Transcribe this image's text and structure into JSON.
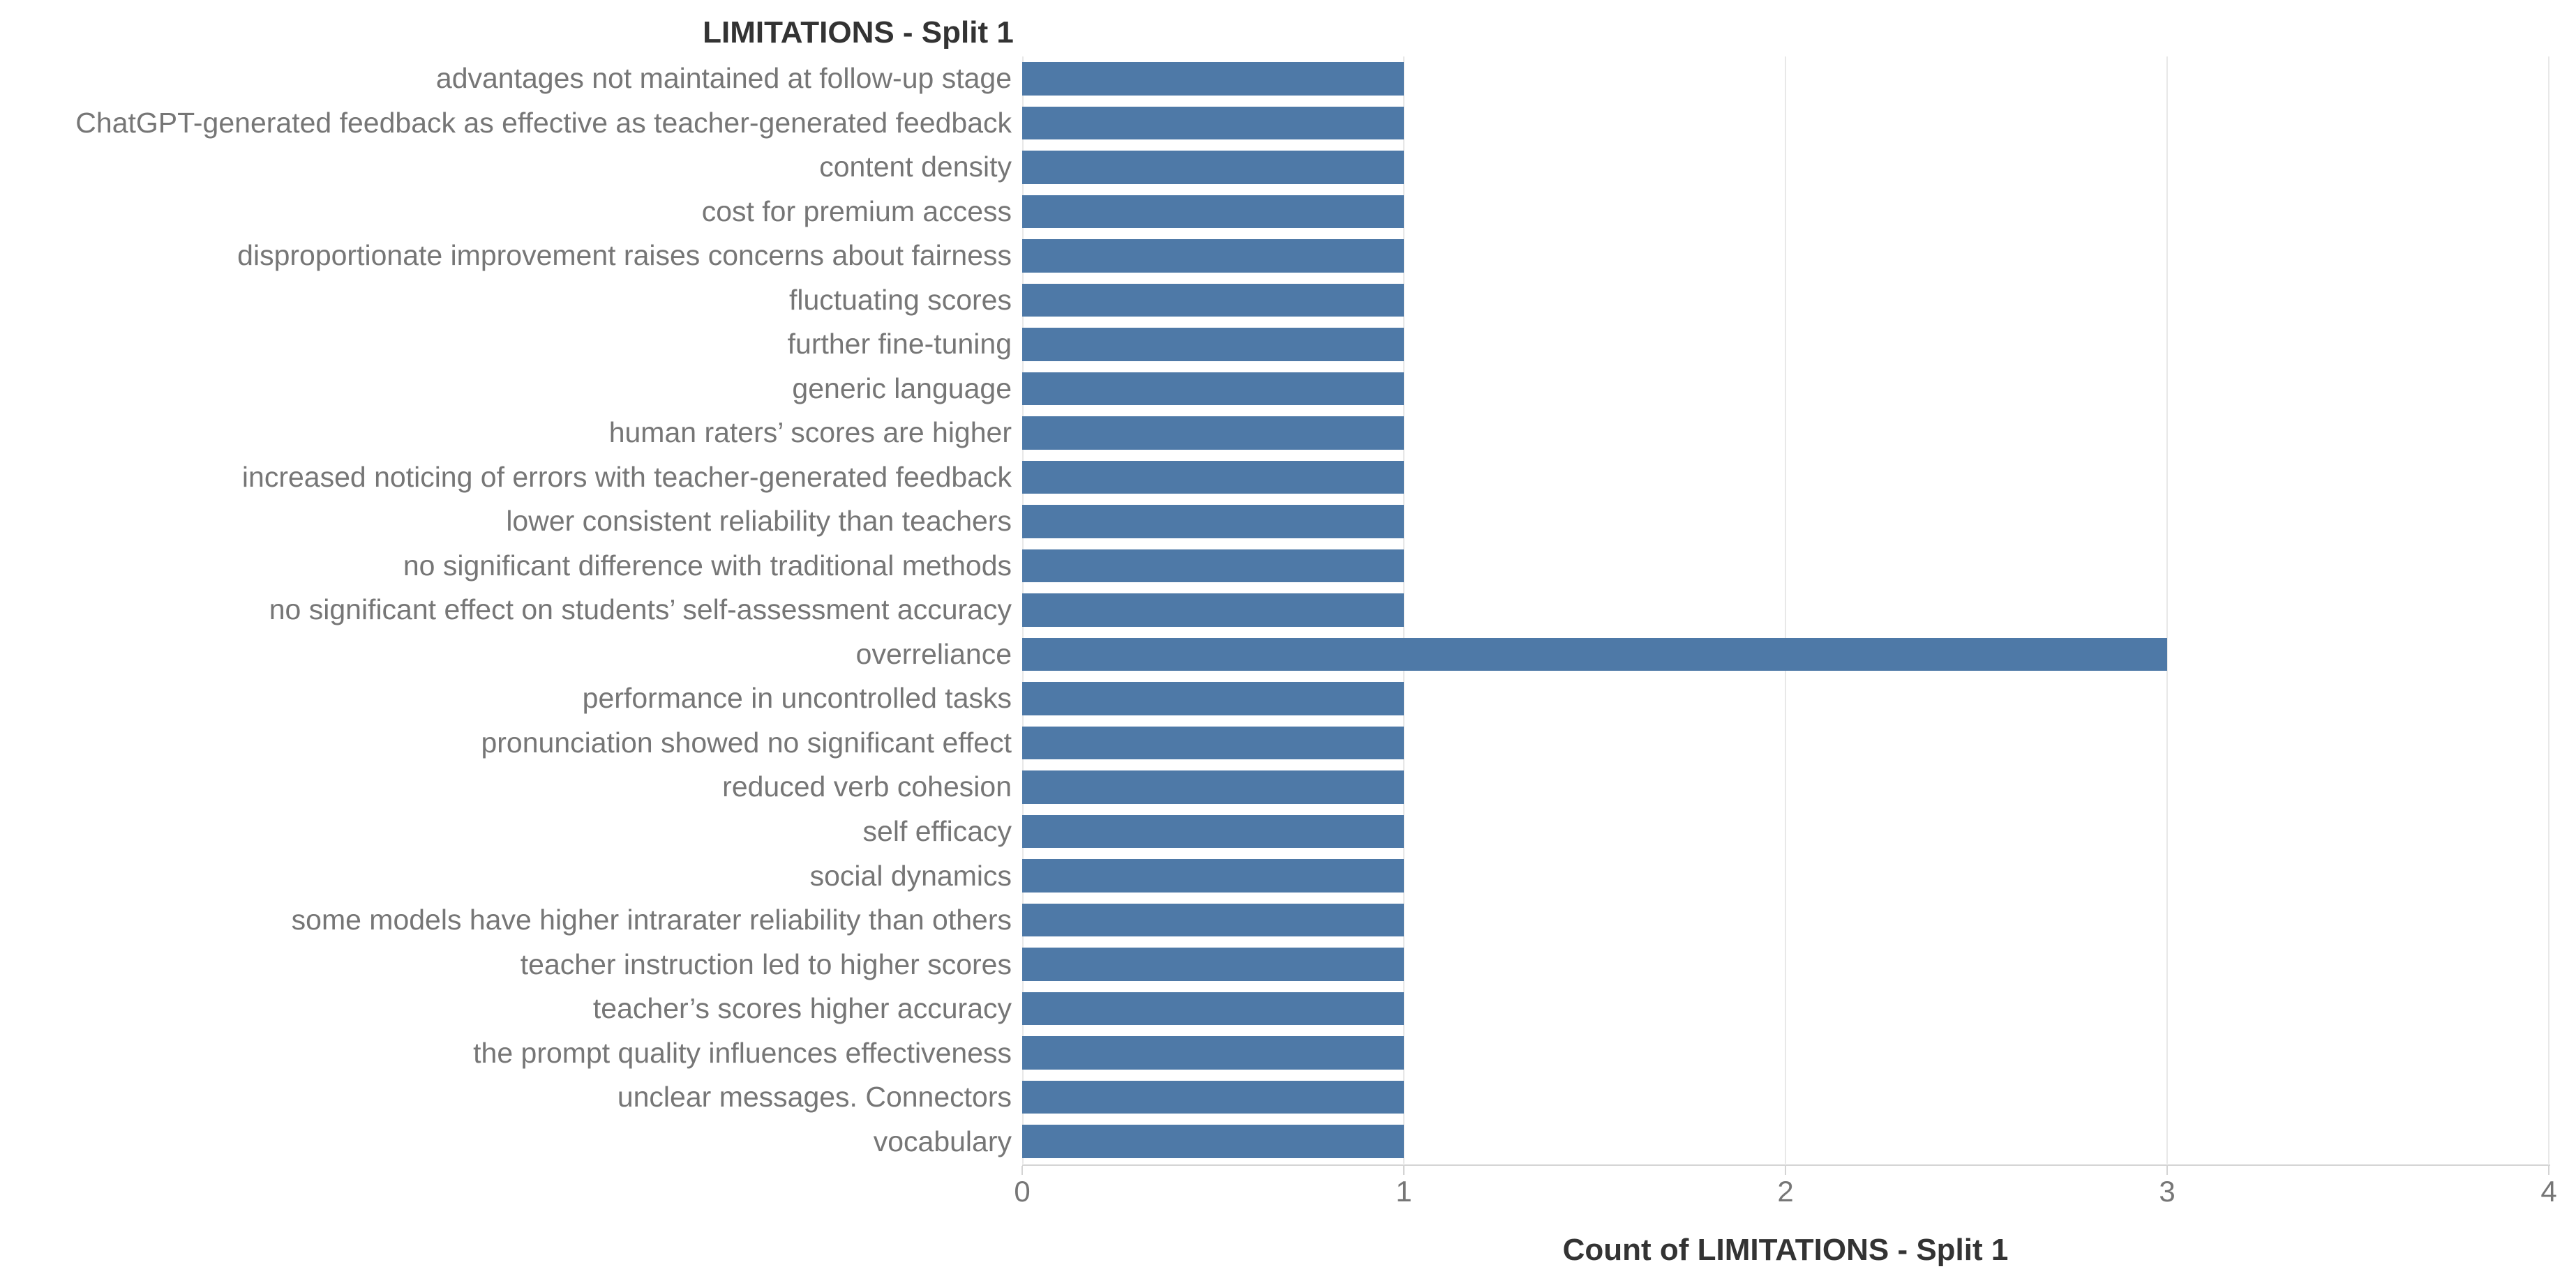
{
  "title": "LIMITATIONS - Split 1",
  "x_axis_title": "Count of LIMITATIONS - Split 1",
  "colors": {
    "bar": "#4e79a7",
    "gridline": "#e8e8e8",
    "zero_line": "#e8e8e8",
    "axis_line": "#d4d4d4",
    "tick_mark": "#d4d4d4",
    "category_label": "#767676",
    "tick_label": "#767676",
    "title_text": "#333333"
  },
  "chart_data": {
    "type": "bar",
    "orientation": "horizontal",
    "title": "LIMITATIONS - Split 1",
    "xlabel": "Count of LIMITATIONS - Split 1",
    "ylabel": "",
    "xlim": [
      0,
      4
    ],
    "x_ticks": [
      0,
      1,
      2,
      3,
      4
    ],
    "x_tick_labels": [
      "0",
      "1",
      "2",
      "3",
      "4"
    ],
    "grid": true,
    "legend": false,
    "categories": [
      "advantages not maintained at follow-up stage",
      "ChatGPT-generated feedback  as effective as teacher-generated feedback",
      "content density",
      "cost for premium access",
      "disproportionate improvement raises concerns about fairness",
      "fluctuating scores",
      "further fine-tuning",
      "generic language",
      "human raters’ scores are higher",
      "increased noticing of errors with teacher-generated feedback",
      "lower consistent reliability than teachers",
      "no significant difference with traditional methods",
      "no significant effect on students’ self-assessment accuracy",
      "overreliance",
      "performance in uncontrolled tasks",
      "pronunciation showed no significant effect",
      "reduced verb cohesion",
      "self efficacy",
      "social dynamics",
      "some models have higher intrarater reliability than others",
      "teacher instruction led to higher scores",
      "teacher’s scores higher accuracy",
      "the prompt quality influences effectiveness",
      "unclear messages. Connectors",
      "vocabulary"
    ],
    "values": [
      1,
      1,
      1,
      1,
      1,
      1,
      1,
      1,
      1,
      1,
      1,
      1,
      1,
      3,
      1,
      1,
      1,
      1,
      1,
      1,
      1,
      1,
      1,
      1,
      1
    ]
  }
}
